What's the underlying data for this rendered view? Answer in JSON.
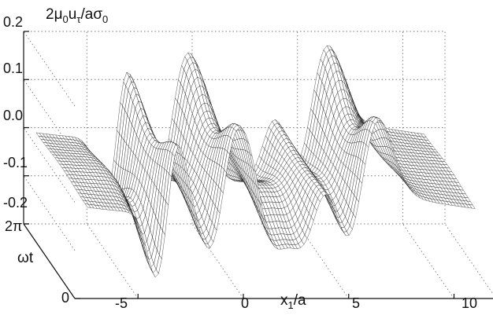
{
  "chart_data": {
    "type": "surface",
    "z_label": {
      "base": "2μ",
      "sub1": "0",
      "mid": "u",
      "sub2": "τ",
      "tail": "/aσ",
      "sub3": "0"
    },
    "x_label": {
      "base": "x",
      "sub": "1",
      "tail": "/a"
    },
    "y_label": "ωt",
    "z_ticks": [
      "0.2",
      "0.1",
      "0.0",
      "-0.1",
      "-0.2"
    ],
    "z_tick_values": [
      0.2,
      0.1,
      0.0,
      -0.1,
      -0.2
    ],
    "x_ticks": [
      "-5",
      "0",
      "5",
      "10"
    ],
    "x_tick_values": [
      -5,
      0,
      5,
      10
    ],
    "y_ticks": [
      "0",
      "2π"
    ],
    "y_tick_values": [
      0,
      6.283
    ],
    "xlim": [
      -8,
      12
    ],
    "ylim": [
      0,
      6.283
    ],
    "zlim": [
      -0.2,
      0.2
    ],
    "grid": true,
    "surface_description": "mesh surface of normalized shear displacement vs position and phase; sharp antisymmetric spikes near x1/a = -3.5, -1, 0.8, 3.5, 5.5",
    "spikes": [
      {
        "x": -3.6,
        "amplitude": 0.14
      },
      {
        "x": -1.0,
        "amplitude": 0.09
      },
      {
        "x": 0.8,
        "amplitude": -0.09
      },
      {
        "x": 3.5,
        "amplitude": 0.1
      },
      {
        "x": 5.6,
        "amplitude": 0.16
      }
    ]
  }
}
